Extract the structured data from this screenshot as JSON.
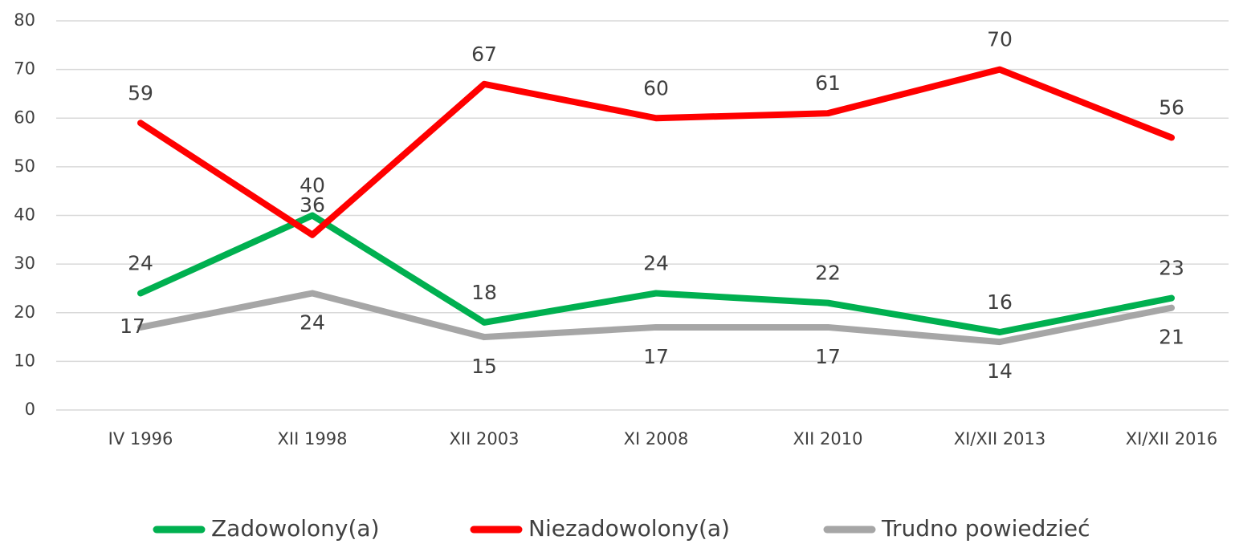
{
  "chart_data": {
    "type": "line",
    "categories": [
      "IV 1996",
      "XII 1998",
      "XII 2003",
      "XI 2008",
      "XII 2010",
      "XI/XII 2013",
      "XI/XII 2016"
    ],
    "series": [
      {
        "name": "Zadowolony(a)",
        "color": "#00b050",
        "values": [
          24,
          40,
          18,
          24,
          22,
          16,
          23
        ]
      },
      {
        "name": "Niezadowolony(a)",
        "color": "#ff0000",
        "values": [
          59,
          36,
          67,
          60,
          61,
          70,
          56
        ]
      },
      {
        "name": "Trudno powiedzieć",
        "color": "#a6a6a6",
        "values": [
          17,
          24,
          15,
          17,
          17,
          14,
          21
        ]
      }
    ],
    "ylim": [
      0,
      80
    ],
    "yticks": [
      0,
      10,
      20,
      30,
      40,
      50,
      60,
      70,
      80
    ],
    "grid": true,
    "legend": "bottom"
  }
}
